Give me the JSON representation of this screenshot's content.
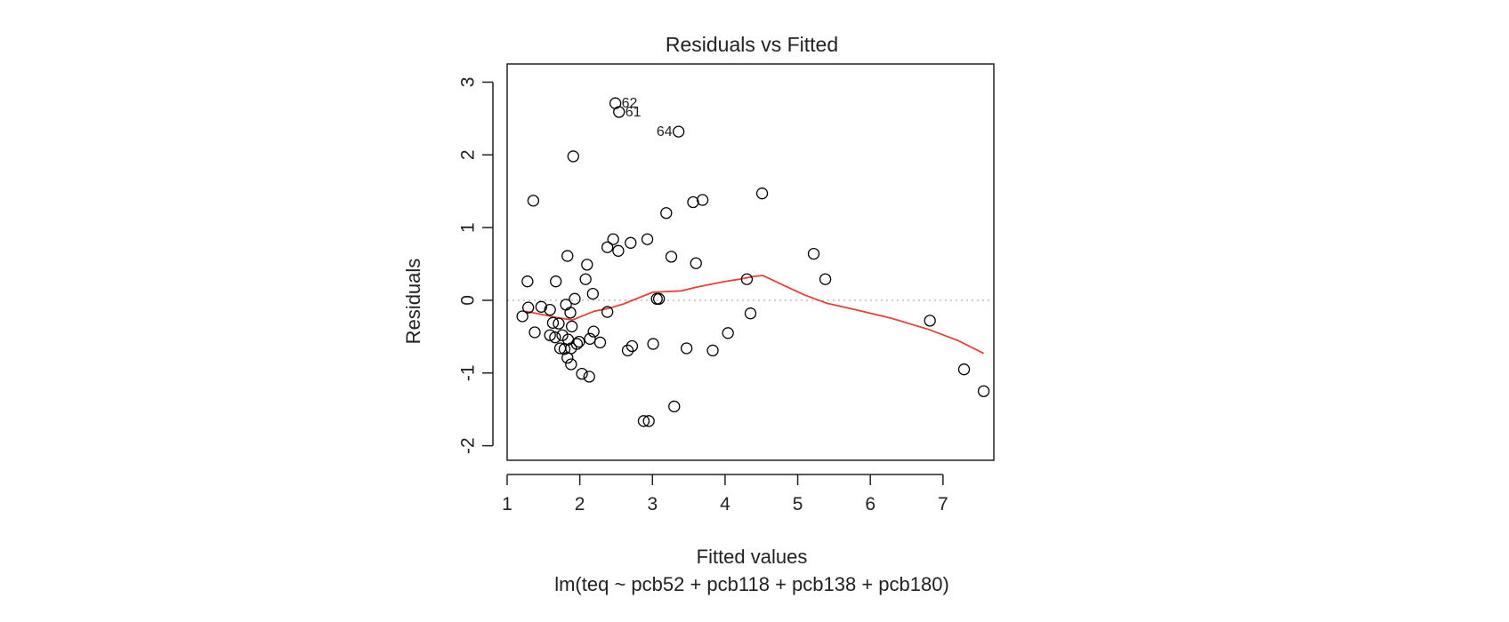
{
  "chart_data": {
    "type": "scatter",
    "title": "Residuals vs Fitted",
    "xlabel": "Fitted values",
    "ylabel": "Residuals",
    "subtitle": "lm(teq ~ pcb52 + pcb118 + pcb138 + pcb180)",
    "xlim": [
      1,
      7.7
    ],
    "ylim": [
      -2.2,
      3.25
    ],
    "x_ticks": [
      1,
      2,
      3,
      4,
      5,
      6,
      7
    ],
    "x_tick_labels": [
      "1",
      "2",
      "3",
      "4",
      "5",
      "6",
      "7"
    ],
    "y_ticks": [
      -2,
      -1,
      0,
      1,
      2,
      3
    ],
    "y_tick_labels": [
      "-2",
      "-1",
      "0",
      "1",
      "2",
      "3"
    ],
    "reference_line_y": 0,
    "colors": {
      "points": "#000000",
      "smooth": "#e8403a",
      "reference": "#bdbdbd",
      "frame": "#222222"
    },
    "points": [
      {
        "x": 2.49,
        "y": 2.71,
        "label": "62"
      },
      {
        "x": 2.54,
        "y": 2.59,
        "label": "61"
      },
      {
        "x": 3.36,
        "y": 2.32,
        "label": "64"
      },
      {
        "x": 1.91,
        "y": 1.98
      },
      {
        "x": 1.36,
        "y": 1.37
      },
      {
        "x": 4.51,
        "y": 1.47
      },
      {
        "x": 3.19,
        "y": 1.2
      },
      {
        "x": 3.56,
        "y": 1.35
      },
      {
        "x": 3.69,
        "y": 1.38
      },
      {
        "x": 2.46,
        "y": 0.84
      },
      {
        "x": 2.93,
        "y": 0.84
      },
      {
        "x": 2.7,
        "y": 0.79
      },
      {
        "x": 2.38,
        "y": 0.73
      },
      {
        "x": 2.53,
        "y": 0.68
      },
      {
        "x": 1.83,
        "y": 0.61
      },
      {
        "x": 3.26,
        "y": 0.6
      },
      {
        "x": 3.6,
        "y": 0.51
      },
      {
        "x": 2.1,
        "y": 0.49
      },
      {
        "x": 5.22,
        "y": 0.64
      },
      {
        "x": 5.38,
        "y": 0.29
      },
      {
        "x": 4.3,
        "y": 0.29
      },
      {
        "x": 1.28,
        "y": 0.26
      },
      {
        "x": 1.67,
        "y": 0.26
      },
      {
        "x": 2.08,
        "y": 0.29
      },
      {
        "x": 2.18,
        "y": 0.09
      },
      {
        "x": 1.93,
        "y": 0.02
      },
      {
        "x": 3.06,
        "y": 0.02
      },
      {
        "x": 3.09,
        "y": 0.02
      },
      {
        "x": 1.21,
        "y": -0.22
      },
      {
        "x": 1.29,
        "y": -0.1
      },
      {
        "x": 1.47,
        "y": -0.09
      },
      {
        "x": 1.59,
        "y": -0.13
      },
      {
        "x": 1.81,
        "y": -0.06
      },
      {
        "x": 1.87,
        "y": -0.17
      },
      {
        "x": 2.38,
        "y": -0.16
      },
      {
        "x": 1.38,
        "y": -0.44
      },
      {
        "x": 1.63,
        "y": -0.31
      },
      {
        "x": 1.71,
        "y": -0.32
      },
      {
        "x": 1.89,
        "y": -0.36
      },
      {
        "x": 1.59,
        "y": -0.48
      },
      {
        "x": 1.66,
        "y": -0.51
      },
      {
        "x": 1.76,
        "y": -0.48
      },
      {
        "x": 1.84,
        "y": -0.54
      },
      {
        "x": 1.99,
        "y": -0.57
      },
      {
        "x": 2.14,
        "y": -0.53
      },
      {
        "x": 2.19,
        "y": -0.43
      },
      {
        "x": 2.28,
        "y": -0.58
      },
      {
        "x": 1.73,
        "y": -0.66
      },
      {
        "x": 1.79,
        "y": -0.67
      },
      {
        "x": 1.88,
        "y": -0.66
      },
      {
        "x": 1.96,
        "y": -0.6
      },
      {
        "x": 1.83,
        "y": -0.79
      },
      {
        "x": 1.88,
        "y": -0.88
      },
      {
        "x": 2.03,
        "y": -1.01
      },
      {
        "x": 2.13,
        "y": -1.05
      },
      {
        "x": 2.66,
        "y": -0.69
      },
      {
        "x": 2.72,
        "y": -0.63
      },
      {
        "x": 3.01,
        "y": -0.6
      },
      {
        "x": 3.47,
        "y": -0.66
      },
      {
        "x": 3.83,
        "y": -0.69
      },
      {
        "x": 4.04,
        "y": -0.45
      },
      {
        "x": 4.35,
        "y": -0.18
      },
      {
        "x": 6.82,
        "y": -0.28
      },
      {
        "x": 7.29,
        "y": -0.95
      },
      {
        "x": 7.56,
        "y": -1.25
      },
      {
        "x": 3.3,
        "y": -1.46
      },
      {
        "x": 2.88,
        "y": -1.66
      },
      {
        "x": 2.95,
        "y": -1.66
      }
    ],
    "smooth": [
      [
        1.25,
        -0.15
      ],
      [
        1.5,
        -0.2
      ],
      [
        1.7,
        -0.24
      ],
      [
        1.9,
        -0.27
      ],
      [
        2.05,
        -0.21
      ],
      [
        2.2,
        -0.15
      ],
      [
        2.4,
        -0.11
      ],
      [
        2.6,
        -0.05
      ],
      [
        2.8,
        0.03
      ],
      [
        3.0,
        0.11
      ],
      [
        3.2,
        0.12
      ],
      [
        3.4,
        0.13
      ],
      [
        3.6,
        0.18
      ],
      [
        3.8,
        0.22
      ],
      [
        4.0,
        0.26
      ],
      [
        4.2,
        0.29
      ],
      [
        4.4,
        0.33
      ],
      [
        4.52,
        0.34
      ],
      [
        4.8,
        0.21
      ],
      [
        5.1,
        0.07
      ],
      [
        5.4,
        -0.04
      ],
      [
        5.8,
        -0.13
      ],
      [
        6.3,
        -0.25
      ],
      [
        6.8,
        -0.4
      ],
      [
        7.2,
        -0.55
      ],
      [
        7.56,
        -0.73
      ]
    ]
  }
}
